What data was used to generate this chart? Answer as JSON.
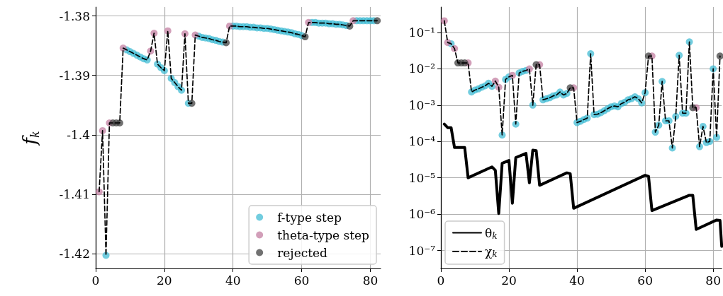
{
  "chart_data": [
    {
      "type": "line",
      "ylabel": "f$_{k}$",
      "xlim": [
        0,
        83
      ],
      "xticks": [
        0,
        20,
        40,
        60,
        80
      ],
      "ylim": [
        -1.4225,
        -1.3785
      ],
      "yticks": [
        -1.42,
        -1.41,
        -1.4,
        -1.39,
        -1.38
      ],
      "grid": true,
      "legend": "bottom right",
      "series": [
        {
          "line_style": "dashed",
          "color": "#000000",
          "x": [
            1,
            2,
            3,
            4,
            5,
            6,
            7,
            8,
            9,
            10,
            11,
            12,
            13,
            14,
            15,
            16,
            17,
            18,
            19,
            20,
            21,
            22,
            23,
            24,
            25,
            26,
            27,
            28,
            29,
            30,
            31,
            32,
            33,
            34,
            35,
            36,
            37,
            38,
            39,
            40,
            41,
            42,
            43,
            44,
            45,
            46,
            47,
            48,
            49,
            50,
            51,
            52,
            53,
            54,
            55,
            56,
            57,
            58,
            59,
            60,
            61,
            62,
            63,
            64,
            65,
            66,
            67,
            68,
            69,
            70,
            71,
            72,
            73,
            74,
            75,
            76,
            77,
            78,
            79,
            80,
            81,
            82
          ],
          "values": [
            -1.4096,
            -1.3993,
            -1.4203,
            -1.398,
            -1.398,
            -1.398,
            -1.398,
            -1.3854,
            -1.3857,
            -1.386,
            -1.3863,
            -1.3866,
            -1.3869,
            -1.3872,
            -1.3874,
            -1.3859,
            -1.3829,
            -1.3881,
            -1.3887,
            -1.3892,
            -1.3825,
            -1.3905,
            -1.3912,
            -1.3919,
            -1.3925,
            -1.383,
            -1.3947,
            -1.3947,
            -1.3832,
            -1.3834,
            -1.3836,
            -1.3837,
            -1.3838,
            -1.384,
            -1.3841,
            -1.3843,
            -1.3844,
            -1.3845,
            -1.3817,
            -1.3817,
            -1.3817,
            -1.3818,
            -1.3818,
            -1.3818,
            -1.3819,
            -1.3819,
            -1.382,
            -1.382,
            -1.3821,
            -1.3821,
            -1.3822,
            -1.3823,
            -1.3824,
            -1.3825,
            -1.3826,
            -1.3827,
            -1.3828,
            -1.383,
            -1.3831,
            -1.3833,
            -1.3835,
            -1.3811,
            -1.3811,
            -1.3811,
            -1.3812,
            -1.3812,
            -1.3812,
            -1.3813,
            -1.3813,
            -1.3814,
            -1.3814,
            -1.3815,
            -1.3816,
            -1.3817,
            -1.3808,
            -1.3808,
            -1.3808,
            -1.3808,
            -1.3808,
            -1.3808,
            -1.3808,
            -1.3808
          ]
        },
        {
          "type": "scatter",
          "marker": "circle",
          "name": "f-type step",
          "color": "#3bbad3",
          "x": [
            3,
            9,
            10,
            11,
            12,
            13,
            14,
            15,
            18,
            19,
            20,
            22,
            23,
            24,
            25,
            27,
            30,
            31,
            32,
            33,
            34,
            35,
            36,
            37,
            40,
            41,
            42,
            43,
            44,
            45,
            46,
            47,
            48,
            49,
            50,
            51,
            52,
            53,
            54,
            55,
            56,
            57,
            58,
            59,
            60,
            63,
            64,
            65,
            66,
            67,
            68,
            69,
            70,
            71,
            72,
            73,
            76,
            77,
            78,
            79,
            80,
            81
          ],
          "values": [
            -1.4203,
            -1.3857,
            -1.386,
            -1.3863,
            -1.3866,
            -1.3869,
            -1.3872,
            -1.3874,
            -1.3881,
            -1.3887,
            -1.3892,
            -1.3905,
            -1.3912,
            -1.3919,
            -1.3925,
            -1.3947,
            -1.3834,
            -1.3836,
            -1.3837,
            -1.3838,
            -1.384,
            -1.3841,
            -1.3843,
            -1.3844,
            -1.3817,
            -1.3817,
            -1.3818,
            -1.3818,
            -1.3818,
            -1.3819,
            -1.3819,
            -1.382,
            -1.382,
            -1.3821,
            -1.3821,
            -1.3822,
            -1.3823,
            -1.3824,
            -1.3825,
            -1.3826,
            -1.3827,
            -1.3828,
            -1.383,
            -1.3831,
            -1.3833,
            -1.3811,
            -1.3811,
            -1.3812,
            -1.3812,
            -1.3812,
            -1.3813,
            -1.3813,
            -1.3814,
            -1.3814,
            -1.3815,
            -1.3816,
            -1.3808,
            -1.3808,
            -1.3808,
            -1.3808,
            -1.3808,
            -1.3808
          ]
        },
        {
          "type": "scatter",
          "marker": "circle",
          "name": "theta-type step",
          "color": "#c07a9e",
          "x": [
            1,
            2,
            4,
            8,
            16,
            17,
            21,
            26,
            29,
            39,
            62,
            75
          ],
          "values": [
            -1.4096,
            -1.3993,
            -1.398,
            -1.3854,
            -1.3859,
            -1.3829,
            -1.3825,
            -1.383,
            -1.3832,
            -1.3817,
            -1.3811,
            -1.3808
          ]
        },
        {
          "type": "scatter",
          "marker": "circle",
          "name": "rejected",
          "color": "#3a3a3a",
          "x": [
            5,
            6,
            7,
            28,
            38,
            61,
            74,
            82
          ],
          "values": [
            -1.398,
            -1.398,
            -1.398,
            -1.3947,
            -1.3845,
            -1.3835,
            -1.3817,
            -1.3808
          ]
        }
      ]
    },
    {
      "type": "line",
      "log": "y",
      "xlim": [
        0,
        82.5
      ],
      "xticks": [
        0,
        20,
        40,
        60,
        80
      ],
      "ylim": [
        3.2e-08,
        0.5
      ],
      "yticks": [
        {
          "value": 1e-07,
          "label": "10⁻⁷"
        },
        {
          "value": 1e-06,
          "label": "10⁻⁶"
        },
        {
          "value": 1e-05,
          "label": "10⁻⁵"
        },
        {
          "value": 0.0001,
          "label": "10⁻⁴"
        },
        {
          "value": 0.001,
          "label": "10⁻³"
        },
        {
          "value": 0.01,
          "label": "10⁻²"
        },
        {
          "value": 0.1,
          "label": "10⁻¹"
        }
      ],
      "grid": true,
      "legend": "bottom left",
      "series": [
        {
          "name": "θ$_{k}$",
          "line_style": "solid",
          "color": "#000000",
          "x": [
            1,
            2,
            3,
            4,
            7,
            8,
            15,
            16,
            17,
            18,
            20,
            21,
            22,
            25,
            26,
            27,
            28,
            29,
            37,
            38,
            39,
            60,
            61,
            62,
            73,
            74,
            75,
            81,
            82,
            82.5
          ],
          "values": [
            0.0003,
            0.00024,
            0.00024,
            6.8e-05,
            6.8e-05,
            1e-05,
            2e-05,
            1.6e-05,
            1.04e-06,
            2.5e-05,
            3e-05,
            2e-06,
            3.6e-05,
            4.7e-05,
            7.3e-06,
            5.8e-05,
            5.6e-05,
            6.2e-06,
            1.37e-05,
            1.3e-05,
            1.45e-06,
            1.17e-05,
            1.1e-05,
            1.25e-06,
            3.3e-06,
            3.3e-06,
            3.8e-07,
            6.9e-07,
            6.7e-07,
            1.3e-07
          ]
        },
        {
          "name": "χ$_{k}$",
          "line_style": "dashed",
          "color": "#000000",
          "x": [
            1,
            2,
            3,
            4,
            5,
            6,
            7,
            8,
            9,
            10,
            11,
            12,
            13,
            14,
            15,
            16,
            17,
            18,
            19,
            20,
            21,
            22,
            23,
            24,
            25,
            26,
            27,
            28,
            29,
            30,
            31,
            32,
            33,
            34,
            35,
            36,
            37,
            38,
            39,
            40,
            41,
            42,
            43,
            44,
            45,
            46,
            47,
            48,
            49,
            50,
            51,
            52,
            53,
            54,
            55,
            56,
            57,
            58,
            59,
            60,
            61,
            62,
            63,
            64,
            65,
            66,
            67,
            68,
            69,
            70,
            71,
            72,
            73,
            74,
            75,
            76,
            77,
            78,
            79,
            80,
            81,
            82
          ],
          "values": [
            0.21,
            0.053,
            0.049,
            0.036,
            0.0145,
            0.0145,
            0.0145,
            0.0145,
            0.0023,
            0.0026,
            0.0028,
            0.0031,
            0.0034,
            0.004,
            0.0033,
            0.0046,
            0.0031,
            0.00015,
            0.0051,
            0.006,
            0.0066,
            0.0003,
            0.0077,
            0.0085,
            0.009,
            0.0099,
            0.001,
            0.013,
            0.013,
            0.0014,
            0.0015,
            0.0016,
            0.0018,
            0.0019,
            0.0023,
            0.0019,
            0.0021,
            0.003,
            0.003,
            0.00033,
            0.00036,
            0.0004,
            0.00044,
            0.026,
            0.00055,
            0.00056,
            0.00062,
            0.0007,
            0.0008,
            0.0009,
            0.00095,
            0.0009,
            0.0011,
            0.0012,
            0.0014,
            0.0015,
            0.0017,
            0.0015,
            0.00115,
            0.0022,
            0.0224,
            0.0224,
            0.00018,
            0.00028,
            0.0045,
            0.00037,
            0.00037,
            6.6e-05,
            0.00049,
            0.0235,
            0.0006,
            0.0006,
            0.055,
            0.00085,
            0.00085,
            7.2e-05,
            0.00026,
            9.3e-05,
            0.0001,
            0.01,
            0.00013,
            0.0224
          ]
        },
        {
          "type": "scatter",
          "marker": "circle",
          "color": "#3bbad3",
          "x": [
            3,
            9,
            10,
            11,
            12,
            13,
            14,
            15,
            18,
            19,
            20,
            22,
            23,
            24,
            25,
            27,
            30,
            31,
            32,
            33,
            34,
            35,
            36,
            37,
            40,
            41,
            42,
            43,
            44,
            45,
            46,
            47,
            48,
            49,
            50,
            51,
            52,
            53,
            54,
            55,
            56,
            57,
            58,
            59,
            60,
            63,
            64,
            65,
            66,
            67,
            68,
            69,
            70,
            71,
            72,
            73,
            76,
            77,
            78,
            79,
            80,
            81
          ],
          "values": [
            0.049,
            0.0023,
            0.0026,
            0.0028,
            0.0031,
            0.0034,
            0.004,
            0.0033,
            0.00015,
            0.0051,
            0.006,
            0.0003,
            0.0077,
            0.0085,
            0.009,
            0.001,
            0.0014,
            0.0015,
            0.0016,
            0.0018,
            0.0019,
            0.0023,
            0.0019,
            0.0021,
            0.00033,
            0.00036,
            0.0004,
            0.00044,
            0.026,
            0.00055,
            0.00056,
            0.00062,
            0.0007,
            0.0008,
            0.0009,
            0.00095,
            0.0009,
            0.0011,
            0.0012,
            0.0014,
            0.0015,
            0.0017,
            0.0015,
            0.00115,
            0.0022,
            0.00018,
            0.00028,
            0.0045,
            0.00037,
            0.00037,
            6.6e-05,
            0.00049,
            0.0235,
            0.0006,
            0.0006,
            0.055,
            7.2e-05,
            0.00026,
            9.3e-05,
            0.0001,
            0.01,
            0.00013
          ]
        },
        {
          "type": "scatter",
          "marker": "circle",
          "color": "#c07a9e",
          "x": [
            1,
            2,
            4,
            8,
            16,
            17,
            21,
            26,
            29,
            39,
            62,
            75
          ],
          "values": [
            0.21,
            0.053,
            0.036,
            0.0145,
            0.0046,
            0.0031,
            0.0066,
            0.0099,
            0.013,
            0.003,
            0.0224,
            0.00085
          ]
        },
        {
          "type": "scatter",
          "marker": "circle",
          "color": "#3a3a3a",
          "x": [
            5,
            6,
            7,
            28,
            38,
            61,
            74,
            82
          ],
          "values": [
            0.0145,
            0.0145,
            0.0145,
            0.013,
            0.003,
            0.0224,
            0.00085,
            0.0224
          ]
        }
      ]
    }
  ]
}
